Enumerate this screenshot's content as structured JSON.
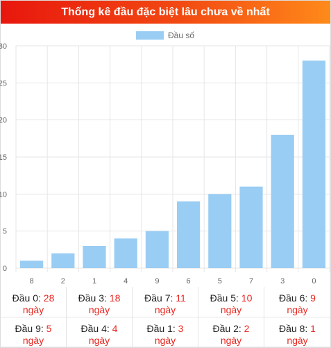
{
  "header": {
    "title": "Thống kê đầu đặc biệt lâu chưa về nhất"
  },
  "colors": {
    "bar": "#99cdf4",
    "accent_red": "#e8261f",
    "grid": "#e6e6e6"
  },
  "chart_data": {
    "type": "bar",
    "categories": [
      "8",
      "2",
      "1",
      "4",
      "9",
      "6",
      "5",
      "7",
      "3",
      "0"
    ],
    "series": [
      {
        "name": "Đầu số",
        "values": [
          1,
          2,
          3,
          4,
          5,
          9,
          10,
          11,
          18,
          28
        ]
      }
    ],
    "y_ticks": [
      "0",
      "5",
      "10",
      "15",
      "20",
      "25",
      "30"
    ],
    "ylim": [
      0,
      30
    ],
    "grid": true,
    "legend_position": "top-center"
  },
  "stats": [
    {
      "label": "Đầu 0:",
      "value": "28",
      "unit": "ngày"
    },
    {
      "label": "Đầu 3:",
      "value": "18",
      "unit": "ngày"
    },
    {
      "label": "Đầu 7:",
      "value": "11",
      "unit": "ngày"
    },
    {
      "label": "Đầu 5:",
      "value": "10",
      "unit": "ngày"
    },
    {
      "label": "Đầu 6:",
      "value": "9",
      "unit": "ngày"
    },
    {
      "label": "Đầu 9:",
      "value": "5",
      "unit": "ngày"
    },
    {
      "label": "Đầu 4:",
      "value": "4",
      "unit": "ngày"
    },
    {
      "label": "Đầu 1:",
      "value": "3",
      "unit": "ngày"
    },
    {
      "label": "Đầu 2:",
      "value": "2",
      "unit": "ngày"
    },
    {
      "label": "Đầu 8:",
      "value": "1",
      "unit": "ngày"
    }
  ]
}
